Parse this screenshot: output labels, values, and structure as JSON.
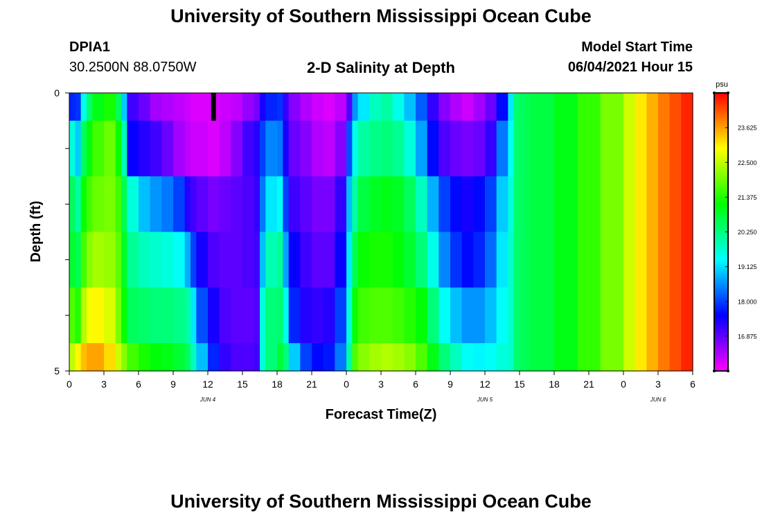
{
  "header": {
    "title": "University of Southern Mississippi Ocean Cube",
    "station": "DPIA1",
    "coordinates": "30.2500N  88.0750W",
    "subtitle": "2-D Salinity at Depth",
    "model_start_label": "Model Start Time",
    "model_start_value": "06/04/2021 Hour 15",
    "footer_title": "University of Southern Mississippi Ocean Cube"
  },
  "chart_data": {
    "type": "heatmap",
    "title": "2-D Salinity at Depth",
    "xlabel": "Forecast Time(Z)",
    "ylabel": "Depth (ft)",
    "x_ticks": [
      "0",
      "3",
      "6",
      "9",
      "12",
      "15",
      "18",
      "21",
      "0",
      "3",
      "6",
      "9",
      "12",
      "15",
      "18",
      "21",
      "0",
      "3",
      "6"
    ],
    "x_range_hours": [
      0,
      54
    ],
    "y_ticks": [
      "0",
      "5"
    ],
    "y_range": [
      0,
      5
    ],
    "date_labels": [
      {
        "label": "JUN 4",
        "hour": 12
      },
      {
        "label": "JUN 5",
        "hour": 36
      },
      {
        "label": "JUN 6",
        "hour": 51
      }
    ],
    "current_time_marker_hour": 12.5,
    "colorbar": {
      "unit": "psu",
      "min": 15.75,
      "max": 24.75,
      "tick_values": [
        16.875,
        18.0,
        19.125,
        20.25,
        21.375,
        22.5,
        23.625
      ],
      "tick_labels": [
        "16.875",
        "18.000",
        "19.125",
        "20.250",
        "21.375",
        "22.500",
        "23.625"
      ]
    },
    "layer_depths": [
      "0-0.5 ft",
      "0.5-1.5 ft",
      "1.5-2.5 ft",
      "2.5-3.5 ft",
      "3.5-4.5 ft",
      "4.5-5 ft"
    ],
    "time_hours": [
      0,
      0.5,
      1,
      1.5,
      2,
      3,
      4,
      4.5,
      5,
      6,
      7,
      8,
      9,
      10,
      10.5,
      11,
      12,
      13,
      14,
      15,
      16,
      16.5,
      17,
      18,
      18.5,
      19,
      20,
      21,
      22,
      23,
      24,
      24.5,
      25,
      26,
      27,
      28,
      29,
      30,
      31,
      32,
      33,
      34,
      35,
      36,
      37,
      38,
      38.5,
      39,
      39.5,
      40,
      42,
      44,
      46,
      48,
      49,
      50,
      51,
      52,
      53,
      54
    ],
    "salinity": [
      [
        17.8,
        17.9,
        19.5,
        20.4,
        21.0,
        21.3,
        20.5,
        19.0,
        17.1,
        16.8,
        16.4,
        16.3,
        16.2,
        16.1,
        16.0,
        16.0,
        16.0,
        16.1,
        16.2,
        16.5,
        16.7,
        17.4,
        17.8,
        17.9,
        17.2,
        16.6,
        16.3,
        16.1,
        16.0,
        16.2,
        17.0,
        18.6,
        19.2,
        19.8,
        20.0,
        19.5,
        18.9,
        18.2,
        17.2,
        16.6,
        16.3,
        16.1,
        16.4,
        16.8,
        17.6,
        19.2,
        20.4,
        20.5,
        20.6,
        20.7,
        21.0,
        21.5,
        22.0,
        22.6,
        23.1,
        23.5,
        23.9,
        24.2,
        24.5,
        24.6
      ],
      [
        19.6,
        19.0,
        20.5,
        21.1,
        21.6,
        21.9,
        21.2,
        19.9,
        17.5,
        17.3,
        17.1,
        16.8,
        16.4,
        16.2,
        16.1,
        16.1,
        16.0,
        16.2,
        16.6,
        17.1,
        17.3,
        18.0,
        18.5,
        18.4,
        17.4,
        16.8,
        16.6,
        16.3,
        16.2,
        16.6,
        18.1,
        19.5,
        20.0,
        20.2,
        20.3,
        20.1,
        19.6,
        18.7,
        17.6,
        17.0,
        16.8,
        16.7,
        16.8,
        17.2,
        18.4,
        19.4,
        20.4,
        20.5,
        20.6,
        20.7,
        21.0,
        21.5,
        22.0,
        22.6,
        23.1,
        23.5,
        23.9,
        24.2,
        24.5,
        24.6
      ],
      [
        20.5,
        20.0,
        21.2,
        21.6,
        21.9,
        22.0,
        21.6,
        20.6,
        19.6,
        18.9,
        18.6,
        18.4,
        18.0,
        17.3,
        17.1,
        16.9,
        16.7,
        16.8,
        16.9,
        17.0,
        17.2,
        18.4,
        19.2,
        19.4,
        18.0,
        17.1,
        16.9,
        16.7,
        16.7,
        17.2,
        18.9,
        20.0,
        20.7,
        20.9,
        21.0,
        20.9,
        20.5,
        19.8,
        18.8,
        18.0,
        17.6,
        17.4,
        17.6,
        18.0,
        19.0,
        19.6,
        20.4,
        20.5,
        20.6,
        20.7,
        21.0,
        21.5,
        22.0,
        22.6,
        23.1,
        23.5,
        23.9,
        24.2,
        24.5,
        24.6
      ],
      [
        20.8,
        20.6,
        21.6,
        22.1,
        22.3,
        22.2,
        21.8,
        20.9,
        20.1,
        19.8,
        19.7,
        19.6,
        19.4,
        18.8,
        18.0,
        17.4,
        17.0,
        16.9,
        16.9,
        17.0,
        17.1,
        18.9,
        19.9,
        20.1,
        18.7,
        17.5,
        17.1,
        16.9,
        16.9,
        17.5,
        19.2,
        20.6,
        21.2,
        21.3,
        21.3,
        21.1,
        20.8,
        20.3,
        19.5,
        18.5,
        17.9,
        17.6,
        17.8,
        18.3,
        19.2,
        19.7,
        20.4,
        20.5,
        20.6,
        20.7,
        21.0,
        21.5,
        22.0,
        22.6,
        23.1,
        23.5,
        23.9,
        24.2,
        24.5,
        24.6
      ],
      [
        21.7,
        21.4,
        22.4,
        22.9,
        23.0,
        22.7,
        22.0,
        21.2,
        20.5,
        20.4,
        20.3,
        20.3,
        20.2,
        20.0,
        19.2,
        18.1,
        17.4,
        17.0,
        16.9,
        16.9,
        17.0,
        19.6,
        20.3,
        20.4,
        19.5,
        17.8,
        17.3,
        17.2,
        17.3,
        18.0,
        19.6,
        21.2,
        21.6,
        21.7,
        21.7,
        21.6,
        21.4,
        21.1,
        20.3,
        19.4,
        18.9,
        18.6,
        18.6,
        18.9,
        19.4,
        19.7,
        20.4,
        20.5,
        20.6,
        20.7,
        21.0,
        21.5,
        22.0,
        22.6,
        23.1,
        23.5,
        23.9,
        24.2,
        24.5,
        24.6
      ],
      [
        22.5,
        23.0,
        23.4,
        23.6,
        23.6,
        23.2,
        22.6,
        22.1,
        21.6,
        21.3,
        21.1,
        21.0,
        20.8,
        20.5,
        19.8,
        18.9,
        17.8,
        17.2,
        17.0,
        17.0,
        17.1,
        19.6,
        20.3,
        20.8,
        20.3,
        19.0,
        18.0,
        17.6,
        17.7,
        18.4,
        20.0,
        21.7,
        22.1,
        22.3,
        22.4,
        22.3,
        22.1,
        21.7,
        21.0,
        20.3,
        19.8,
        19.4,
        19.3,
        19.4,
        19.6,
        19.7,
        20.4,
        20.5,
        20.6,
        20.7,
        21.0,
        21.5,
        22.0,
        22.6,
        23.1,
        23.5,
        23.9,
        24.2,
        24.5,
        24.6
      ]
    ]
  }
}
